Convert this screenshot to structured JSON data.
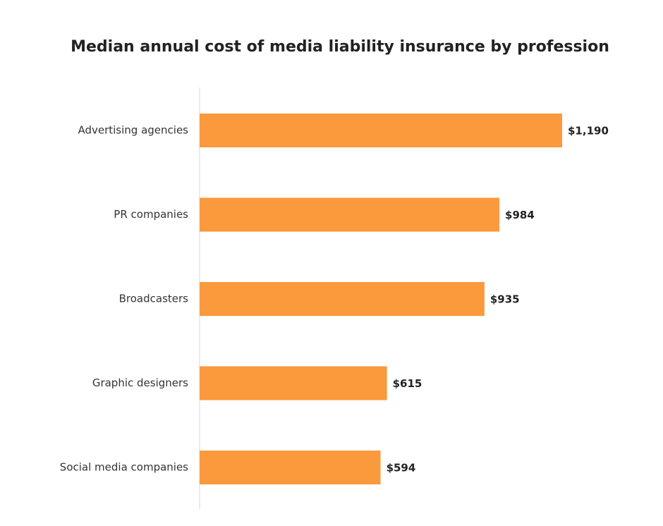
{
  "chart_data": {
    "type": "bar",
    "orientation": "horizontal",
    "title": "Median annual cost of media liability insurance by profession",
    "categories": [
      "Advertising agencies",
      "PR companies",
      "Broadcasters",
      "Graphic designers",
      "Social media companies"
    ],
    "values": [
      1190,
      984,
      935,
      615,
      594
    ],
    "value_labels": [
      "$1,190",
      "$984",
      "$935",
      "$615",
      "$594"
    ],
    "xlabel": "",
    "ylabel": "",
    "grid": false,
    "legend": "none",
    "bar_color": "#FB993D",
    "axis_color": "#D9D9D9"
  }
}
